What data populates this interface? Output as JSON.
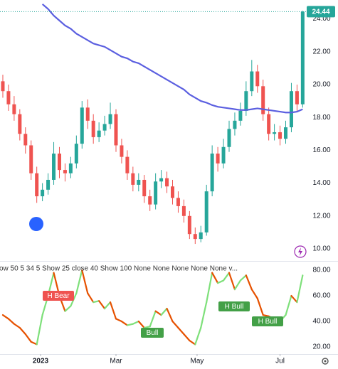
{
  "chart_data": [
    {
      "type": "candlestick",
      "x": [
        0,
        3,
        6,
        9,
        12,
        15,
        18,
        21,
        24,
        27,
        30,
        33,
        36,
        39,
        42,
        45,
        48,
        51,
        54,
        57,
        60,
        63,
        66,
        69,
        72,
        75,
        78,
        81,
        84,
        87,
        90,
        93,
        96,
        99,
        102,
        105,
        108,
        111,
        114,
        117,
        120,
        123,
        126,
        129,
        132,
        135,
        138,
        141,
        144,
        147,
        150,
        153,
        156,
        159
      ],
      "open": [
        20.2,
        19.6,
        18.8,
        18.2,
        17.0,
        16.3,
        14.6,
        13.2,
        13.6,
        14.2,
        15.8,
        14.8,
        14.6,
        15.2,
        16.4,
        18.6,
        17.8,
        16.8,
        17.2,
        17.6,
        18.2,
        16.3,
        15.6,
        14.6,
        13.9,
        14.2,
        13.2,
        12.7,
        14.1,
        14.3,
        13.8,
        13.1,
        12.6,
        12.0,
        10.9,
        10.6,
        11.0,
        13.5,
        15.8,
        15.2,
        16.2,
        17.3,
        17.8,
        18.4,
        19.6,
        20.8,
        19.9,
        18.2,
        17.0,
        17.1,
        16.7,
        17.4,
        19.6,
        18.8
      ],
      "high": [
        20.6,
        20.0,
        19.3,
        18.5,
        17.4,
        16.6,
        15.0,
        14.0,
        14.6,
        16.5,
        16.2,
        15.2,
        15.6,
        16.9,
        19.0,
        19.1,
        18.2,
        17.7,
        18.1,
        18.9,
        18.5,
        16.7,
        16.0,
        15.0,
        14.6,
        14.5,
        13.6,
        14.6,
        14.8,
        14.7,
        14.2,
        13.5,
        13.0,
        12.3,
        11.3,
        11.4,
        13.9,
        16.3,
        16.2,
        16.7,
        17.8,
        18.3,
        18.9,
        20.2,
        21.5,
        21.2,
        20.3,
        18.6,
        17.6,
        17.5,
        17.8,
        20.1,
        20.0,
        24.5
      ],
      "low": [
        19.2,
        18.4,
        17.8,
        16.6,
        15.8,
        14.2,
        12.8,
        12.9,
        13.3,
        13.9,
        14.3,
        14.1,
        14.3,
        14.9,
        16.1,
        17.3,
        16.4,
        16.5,
        16.9,
        17.3,
        15.9,
        15.2,
        14.2,
        13.5,
        13.5,
        12.8,
        12.3,
        12.4,
        13.7,
        13.4,
        12.7,
        12.2,
        11.6,
        10.6,
        10.3,
        10.4,
        10.8,
        13.2,
        14.7,
        14.9,
        15.9,
        16.9,
        17.5,
        18.1,
        19.3,
        19.5,
        17.8,
        16.6,
        16.6,
        16.3,
        16.4,
        17.1,
        18.4,
        18.6
      ],
      "close": [
        19.6,
        18.8,
        18.2,
        17.0,
        16.3,
        14.6,
        13.2,
        13.6,
        14.2,
        15.8,
        14.8,
        14.6,
        15.2,
        16.4,
        18.6,
        17.8,
        16.8,
        17.2,
        17.6,
        18.2,
        16.3,
        15.6,
        14.6,
        13.9,
        14.2,
        13.2,
        12.7,
        14.1,
        14.3,
        13.8,
        13.1,
        12.6,
        12.0,
        10.9,
        10.6,
        11.0,
        13.5,
        15.8,
        15.2,
        16.2,
        17.3,
        17.8,
        18.4,
        19.6,
        20.8,
        19.9,
        18.2,
        17.0,
        17.1,
        16.7,
        17.4,
        19.6,
        18.8,
        24.44
      ],
      "up_color": "#26a69a",
      "down_color": "#ef5350",
      "overlay": {
        "color": "#5b5fe0",
        "values": [
          null,
          null,
          null,
          null,
          null,
          null,
          null,
          24.9,
          24.6,
          24.2,
          23.9,
          23.6,
          23.4,
          23.1,
          22.9,
          22.7,
          22.5,
          22.4,
          22.3,
          22.1,
          21.9,
          21.7,
          21.6,
          21.4,
          21.3,
          21.1,
          20.9,
          20.7,
          20.5,
          20.3,
          20.1,
          19.9,
          19.7,
          19.4,
          19.2,
          19.0,
          18.9,
          18.75,
          18.65,
          18.6,
          18.55,
          18.5,
          18.45,
          18.45,
          18.5,
          18.55,
          18.5,
          18.45,
          18.4,
          18.35,
          18.3,
          18.3,
          18.35,
          18.5
        ]
      },
      "xlim": [
        -1.5,
        160.75
      ],
      "xticks": [
        {
          "value": 20,
          "label": "2023"
        },
        {
          "value": 60,
          "label": "Mar"
        },
        {
          "value": 103,
          "label": "May"
        },
        {
          "value": 147,
          "label": "Jul"
        }
      ],
      "ylim": [
        9.35,
        25.15
      ],
      "yticks": [
        {
          "value": 24,
          "label": "24.00"
        },
        {
          "value": 22,
          "label": "22.00"
        },
        {
          "value": 20,
          "label": "20.00"
        },
        {
          "value": 18,
          "label": "18.00"
        },
        {
          "value": 16,
          "label": "16.00"
        },
        {
          "value": 14,
          "label": "14.00"
        },
        {
          "value": 12,
          "label": "12.00"
        },
        {
          "value": 10,
          "label": "10.00"
        }
      ],
      "grid": false
    },
    {
      "type": "line",
      "title": "ow 50 5 34 5 Show 25 close 40 Show 100 None None None None None v...",
      "x": [
        0,
        3,
        6,
        9,
        12,
        15,
        18,
        21,
        24,
        27,
        30,
        33,
        36,
        39,
        42,
        45,
        48,
        51,
        54,
        57,
        60,
        63,
        66,
        69,
        72,
        75,
        78,
        81,
        84,
        87,
        90,
        93,
        96,
        99,
        102,
        105,
        108,
        111,
        114,
        117,
        120,
        123,
        126,
        129,
        132,
        135,
        138,
        141,
        144,
        147,
        150,
        153,
        156,
        159
      ],
      "values": [
        45,
        42,
        38,
        35,
        30,
        24,
        22,
        45,
        60,
        78,
        60,
        48,
        52,
        62,
        80,
        62,
        55,
        56,
        50,
        55,
        42,
        40,
        37,
        38,
        40,
        35,
        36,
        48,
        45,
        50,
        40,
        35,
        30,
        25,
        22,
        35,
        55,
        78,
        70,
        72,
        78,
        65,
        72,
        76,
        65,
        58,
        45,
        44,
        42,
        40,
        45,
        60,
        55,
        76
      ],
      "rise_color": "#7ee07a",
      "fall_color": "#e65100",
      "xlim": [
        -1.5,
        160.75
      ],
      "ylim": [
        15,
        85.6
      ],
      "yticks": [
        {
          "value": 80,
          "label": "80.00"
        },
        {
          "value": 60,
          "label": "60.00"
        },
        {
          "value": 40,
          "label": "40.00"
        },
        {
          "value": 20,
          "label": "20.00"
        }
      ],
      "annotations": [
        {
          "text": "H Bear",
          "color": "#ef5350"
        },
        {
          "text": "Bull",
          "color": "#43a047"
        },
        {
          "text": "H Bull",
          "color": "#43a047"
        },
        {
          "text": "H Bull",
          "color": "#43a047"
        }
      ],
      "grid": false
    }
  ]
}
